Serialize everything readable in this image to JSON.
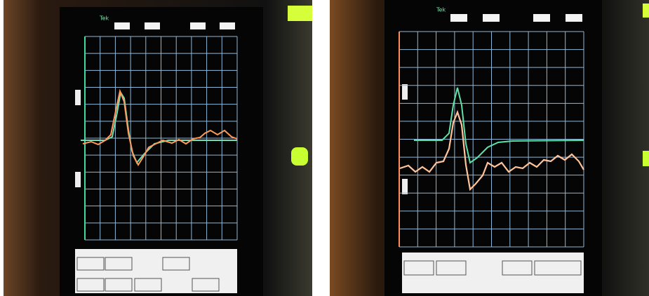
{
  "screens": [
    {
      "label": "Tek"
    },
    {
      "label": "Tek"
    }
  ]
}
